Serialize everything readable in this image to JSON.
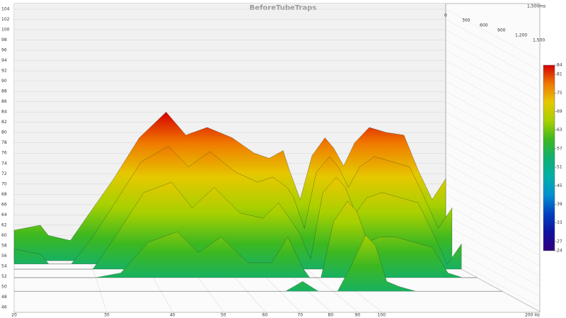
{
  "chart_data": {
    "type": "waterfall",
    "title": "BeforeTubeTraps",
    "x": [
      20,
      23,
      24,
      27,
      30,
      34,
      39,
      45,
      50,
      56,
      64,
      72,
      78,
      84,
      87,
      92,
      98,
      105,
      110,
      116,
      123,
      133,
      146,
      160,
      173,
      186,
      200
    ],
    "series": [
      {
        "time": 0,
        "values": [
          61,
          62,
          60,
          59,
          64.5,
          71,
          79,
          84,
          79.5,
          81,
          79,
          76,
          75,
          76.5,
          72.5,
          67,
          75.5,
          79,
          77,
          73.5,
          78,
          81,
          80,
          79.5,
          72.5,
          67,
          71
        ]
      },
      {
        "time": 100,
        "values": [
          58,
          57,
          55,
          54,
          60,
          67,
          75,
          78,
          74,
          77,
          73,
          71,
          72,
          70,
          68,
          62,
          73,
          76,
          74,
          70,
          74,
          76,
          75,
          74,
          68,
          62,
          66
        ]
      },
      {
        "time": 250,
        "values": [
          54,
          52,
          50,
          50,
          55,
          62,
          70,
          72,
          67,
          71,
          66,
          65,
          68,
          64,
          62,
          57,
          70,
          73,
          71,
          66,
          69,
          70,
          69,
          68,
          62,
          56,
          60
        ]
      },
      {
        "time": 500,
        "values": [
          50,
          48,
          46,
          46,
          50,
          56,
          62,
          64,
          60,
          63,
          58,
          58,
          63,
          57,
          55,
          51,
          66,
          70,
          68,
          62,
          63,
          63,
          62,
          61,
          56,
          50,
          54
        ]
      },
      {
        "time": 900,
        "values": [
          46,
          46,
          46,
          46,
          46,
          50,
          54,
          55,
          52,
          55,
          50,
          50,
          57,
          50,
          48,
          46,
          60,
          66,
          64,
          57,
          56,
          55,
          54,
          53,
          50,
          46,
          48
        ]
      }
    ],
    "xlim": [
      20,
      200
    ],
    "log_x": true,
    "xticks": [
      20,
      30,
      40,
      50,
      60,
      70,
      80,
      90,
      100,
      {
        "value": 200,
        "label": "200 Hz"
      }
    ],
    "ylim": [
      46,
      104
    ],
    "yticks": [
      46,
      48,
      50,
      52,
      54,
      56,
      58,
      60,
      62,
      64,
      66,
      68,
      70,
      72,
      74,
      76,
      78,
      80,
      82,
      84,
      86,
      88,
      90,
      92,
      94,
      96,
      98,
      100,
      102,
      104
    ],
    "zlim": [
      0,
      1500
    ],
    "zticks": [
      0,
      300,
      600,
      900,
      {
        "value": 1200,
        "label": "1,200"
      },
      {
        "value": 1500,
        "label": "1,500"
      }
    ],
    "z_end_label": "1,500ms",
    "colorbar_ticks": [
      84,
      81,
      75,
      69,
      63,
      57,
      51,
      45,
      39,
      33,
      27,
      24
    ],
    "colorbar_lim": [
      24,
      84
    ],
    "colorscale": [
      [
        84,
        "#d40000"
      ],
      [
        78,
        "#f07800"
      ],
      [
        72,
        "#e6c800"
      ],
      [
        66,
        "#a8d000"
      ],
      [
        60,
        "#3cb820"
      ],
      [
        54,
        "#10b070"
      ],
      [
        48,
        "#00b0a8"
      ],
      [
        42,
        "#0090d0"
      ],
      [
        36,
        "#0040c0"
      ],
      [
        30,
        "#1010a0"
      ],
      [
        24,
        "#300080"
      ]
    ],
    "grid": true
  }
}
